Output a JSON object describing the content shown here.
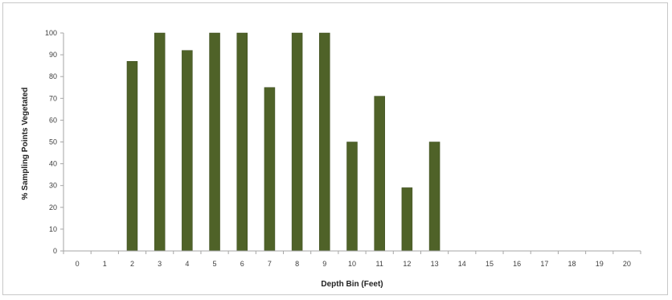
{
  "chart_data": {
    "type": "bar",
    "title": "",
    "xlabel": "Depth Bin (Feet)",
    "ylabel": "% Sampling Points Vegetated",
    "categories": [
      "0",
      "1",
      "2",
      "3",
      "4",
      "5",
      "6",
      "7",
      "8",
      "9",
      "10",
      "11",
      "12",
      "13",
      "14",
      "15",
      "16",
      "17",
      "18",
      "19",
      "20"
    ],
    "values": [
      0,
      0,
      87,
      100,
      92,
      100,
      100,
      75,
      100,
      100,
      50,
      71,
      29,
      50,
      0,
      0,
      0,
      0,
      0,
      0,
      0
    ],
    "ylim": [
      0,
      100
    ],
    "yticks": [
      0,
      10,
      20,
      30,
      40,
      50,
      60,
      70,
      80,
      90,
      100
    ],
    "grid": false,
    "legend": "none",
    "bar_color": "#4f6228",
    "bar_edge_color": "#3a4a1c"
  }
}
